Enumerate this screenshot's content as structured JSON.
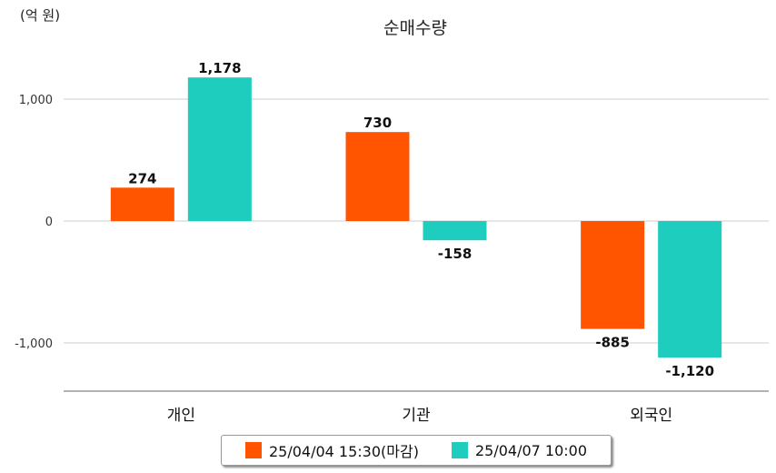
{
  "unit_label": "(억 원)",
  "chart_data": {
    "type": "bar",
    "title": "순매수량",
    "categories": [
      "개인",
      "기관",
      "외국인"
    ],
    "series": [
      {
        "name": "25/04/04 15:30(마감)",
        "values": [
          274,
          730,
          -885
        ],
        "labels": [
          "274",
          "730",
          "-885"
        ],
        "color": "#ff5500"
      },
      {
        "name": "25/04/07 10:00",
        "values": [
          1178,
          -158,
          -1120
        ],
        "labels": [
          "1,178",
          "-158",
          "-1,120"
        ],
        "color": "#1ecdbd"
      }
    ],
    "yticks": [
      1000,
      0,
      -1000
    ],
    "ytick_labels": [
      "1,000",
      "0",
      "-1,000"
    ],
    "ylim": [
      -1400,
      1400
    ],
    "grid": true,
    "legend_position": "bottom"
  }
}
